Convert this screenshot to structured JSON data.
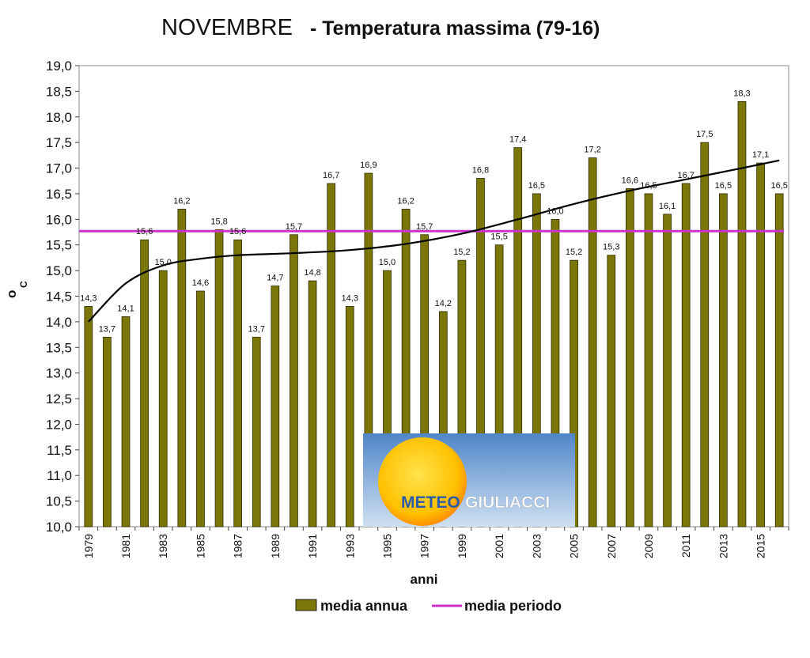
{
  "chart_data": {
    "type": "bar",
    "title": "NOVEMBRE",
    "subtitle": "- Temperatura massima  (79-16)",
    "xlabel": "anni",
    "ylabel_symbol": "o",
    "ylabel_unit": "C",
    "ylim": [
      10,
      19
    ],
    "ytick_step": 0.5,
    "grid": false,
    "legend_placement": "bottom",
    "categories": [
      "1979",
      "1980",
      "1981",
      "1982",
      "1983",
      "1984",
      "1985",
      "1986",
      "1987",
      "1988",
      "1989",
      "1990",
      "1991",
      "1992",
      "1993",
      "1994",
      "1995",
      "1996",
      "1997",
      "1998",
      "1999",
      "2000",
      "2001",
      "2002",
      "2003",
      "2004",
      "2005",
      "2006",
      "2007",
      "2008",
      "2009",
      "2010",
      "2011",
      "2012",
      "2013",
      "2014",
      "2015",
      "2016"
    ],
    "xtick_labels": [
      "1979",
      "",
      "1981",
      "",
      "1983",
      "",
      "1985",
      "",
      "1987",
      "",
      "1989",
      "",
      "1991",
      "",
      "1993",
      "",
      "1995",
      "",
      "1997",
      "",
      "1999",
      "",
      "2001",
      "",
      "2003",
      "",
      "2005",
      "",
      "2007",
      "",
      "2009",
      "",
      "2011",
      "",
      "2013",
      "",
      "2015",
      ""
    ],
    "series": [
      {
        "name": "media annua",
        "kind": "bar",
        "color": "#7b7608",
        "values": [
          14.3,
          13.7,
          14.1,
          15.6,
          15.0,
          16.2,
          14.6,
          15.8,
          15.6,
          13.7,
          14.7,
          15.7,
          14.8,
          16.7,
          14.3,
          16.9,
          15.0,
          16.2,
          15.7,
          14.2,
          15.2,
          16.8,
          15.5,
          17.4,
          16.5,
          16.0,
          15.2,
          17.2,
          15.3,
          16.6,
          16.5,
          16.1,
          16.7,
          17.5,
          16.5,
          18.3,
          17.1,
          16.5
        ],
        "labels": [
          "14,3",
          "13,7",
          "14,1",
          "15,6",
          "15,0",
          "16,2",
          "14,6",
          "15,8",
          "15,6",
          "13,7",
          "14,7",
          "15,7",
          "14,8",
          "16,7",
          "14,3",
          "16,9",
          "15,0",
          "16,2",
          "15,7",
          "14,2",
          "15,2",
          "16,8",
          "15,5",
          "17,4",
          "16,5",
          "16,0",
          "15,2",
          "17,2",
          "15,3",
          "16,6",
          "16,5",
          "16,1",
          "16,7",
          "17,5",
          "16,5",
          "18,3",
          "17,1",
          "16,5"
        ]
      },
      {
        "name": "media periodo",
        "kind": "hline",
        "color": "#cc33cc",
        "value": 15.77
      },
      {
        "kind": "trend",
        "color": "#000000",
        "x": [
          "1979",
          "1981",
          "1983",
          "1985",
          "1987",
          "1990",
          "1993",
          "1996",
          "1999",
          "2002",
          "2005",
          "2008",
          "2011",
          "2014",
          "2016"
        ],
        "values": [
          14.0,
          14.75,
          15.1,
          15.23,
          15.3,
          15.34,
          15.4,
          15.52,
          15.72,
          16.0,
          16.3,
          16.56,
          16.78,
          17.0,
          17.15
        ]
      }
    ]
  },
  "logo": {
    "text_left": "METEO",
    "text_right": "GIULIACCI"
  }
}
